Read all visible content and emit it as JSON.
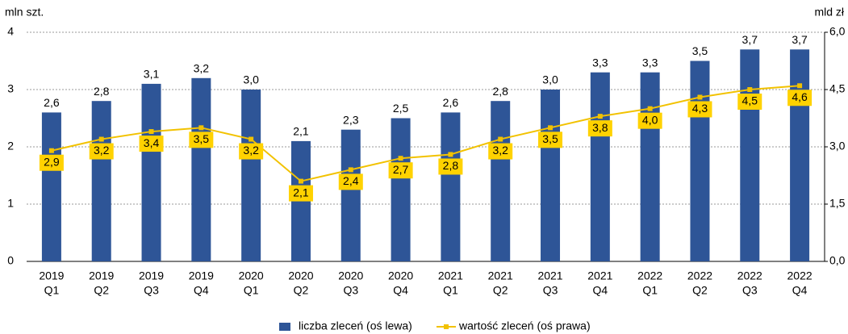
{
  "chart_data": {
    "type": "bar",
    "ylabel": "mln szt.",
    "y2label": "mld zł",
    "categories": [
      [
        "2019",
        "Q1"
      ],
      [
        "2019",
        "Q2"
      ],
      [
        "2019",
        "Q3"
      ],
      [
        "2019",
        "Q4"
      ],
      [
        "2020",
        "Q1"
      ],
      [
        "2020",
        "Q2"
      ],
      [
        "2020",
        "Q3"
      ],
      [
        "2020",
        "Q4"
      ],
      [
        "2021",
        "Q1"
      ],
      [
        "2021",
        "Q2"
      ],
      [
        "2021",
        "Q3"
      ],
      [
        "2021",
        "Q4"
      ],
      [
        "2022",
        "Q1"
      ],
      [
        "2022",
        "Q2"
      ],
      [
        "2022",
        "Q3"
      ],
      [
        "2022",
        "Q4"
      ]
    ],
    "series": [
      {
        "name": "liczba zleceń (oś lewa)",
        "type": "bar",
        "axis": "y",
        "color": "#2e5597",
        "values": [
          2.6,
          2.8,
          3.1,
          3.2,
          3.0,
          2.1,
          2.3,
          2.5,
          2.6,
          2.8,
          3.0,
          3.3,
          3.3,
          3.5,
          3.7,
          3.7
        ],
        "value_labels": [
          "2,6",
          "2,8",
          "3,1",
          "3,2",
          "3,0",
          "2,1",
          "2,3",
          "2,5",
          "2,6",
          "2,8",
          "3,0",
          "3,3",
          "3,3",
          "3,5",
          "3,7",
          "3,7"
        ]
      },
      {
        "name": "wartość zleceń (oś prawa)",
        "type": "line",
        "axis": "y2",
        "color": "#f2c200",
        "label_color": "#ffd200",
        "values": [
          2.9,
          3.2,
          3.4,
          3.5,
          3.2,
          2.1,
          2.4,
          2.7,
          2.8,
          3.2,
          3.5,
          3.8,
          4.0,
          4.3,
          4.5,
          4.6
        ],
        "value_labels": [
          "2,9",
          "3,2",
          "3,4",
          "3,5",
          "3,2",
          "2,1",
          "2,4",
          "2,7",
          "2,8",
          "3,2",
          "3,5",
          "3,8",
          "4,0",
          "4,3",
          "4,5",
          "4,6"
        ]
      }
    ],
    "ylim": [
      0,
      4
    ],
    "yticks": [
      0,
      1,
      2,
      3,
      4
    ],
    "y2lim": [
      0,
      6
    ],
    "y2ticks": [
      {
        "value": 0,
        "label": "0,0"
      },
      {
        "value": 1.5,
        "label": "1,5"
      },
      {
        "value": 3,
        "label": "3,0"
      },
      {
        "value": 4.5,
        "label": "4,5"
      },
      {
        "value": 6,
        "label": "6,0"
      }
    ],
    "grid": true,
    "legend": "bottom"
  }
}
